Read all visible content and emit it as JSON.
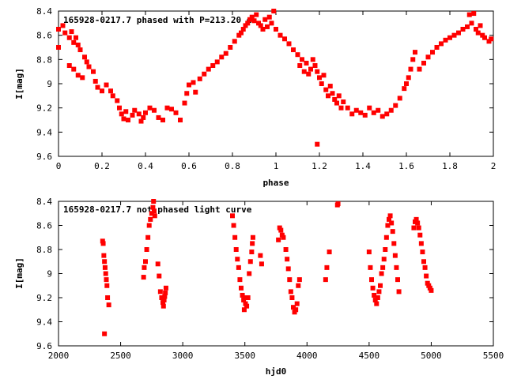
{
  "chart_data": [
    {
      "type": "scatter",
      "title": "165928-0217.7 phased with P=213.20 d",
      "xlabel": "phase",
      "ylabel": "I[mag]",
      "xlim": [
        0,
        2
      ],
      "ylim": [
        9.6,
        8.4
      ],
      "y_inverted": true,
      "grid": false,
      "marker_color": "#ff0000",
      "xticks": [
        "0",
        "0.2",
        "0.4",
        "0.6",
        "0.8",
        "1",
        "1.2",
        "1.4",
        "1.6",
        "1.8",
        "2"
      ],
      "yticks": [
        "8.4",
        "8.6",
        "8.8",
        "9",
        "9.2",
        "9.4",
        "9.6"
      ],
      "points": [
        [
          0.0,
          8.7
        ],
        [
          0.0,
          8.55
        ],
        [
          0.02,
          8.52
        ],
        [
          0.03,
          8.58
        ],
        [
          0.05,
          8.62
        ],
        [
          0.06,
          8.57
        ],
        [
          0.07,
          8.66
        ],
        [
          0.08,
          8.62
        ],
        [
          0.09,
          8.68
        ],
        [
          0.1,
          8.72
        ],
        [
          0.05,
          8.85
        ],
        [
          0.07,
          8.88
        ],
        [
          0.09,
          8.93
        ],
        [
          0.11,
          8.95
        ],
        [
          0.12,
          8.78
        ],
        [
          0.13,
          8.82
        ],
        [
          0.14,
          8.86
        ],
        [
          0.16,
          8.9
        ],
        [
          0.17,
          8.98
        ],
        [
          0.18,
          9.03
        ],
        [
          0.2,
          9.06
        ],
        [
          0.22,
          9.01
        ],
        [
          0.24,
          9.06
        ],
        [
          0.25,
          9.1
        ],
        [
          0.27,
          9.14
        ],
        [
          0.28,
          9.2
        ],
        [
          0.29,
          9.25
        ],
        [
          0.3,
          9.29
        ],
        [
          0.31,
          9.23
        ],
        [
          0.32,
          9.3
        ],
        [
          0.34,
          9.26
        ],
        [
          0.35,
          9.22
        ],
        [
          0.37,
          9.25
        ],
        [
          0.38,
          9.31
        ],
        [
          0.39,
          9.28
        ],
        [
          0.4,
          9.24
        ],
        [
          0.42,
          9.2
        ],
        [
          0.44,
          9.22
        ],
        [
          0.46,
          9.28
        ],
        [
          0.48,
          9.3
        ],
        [
          0.5,
          9.2
        ],
        [
          0.52,
          9.21
        ],
        [
          0.54,
          9.24
        ],
        [
          0.56,
          9.3
        ],
        [
          0.58,
          9.16
        ],
        [
          0.59,
          9.08
        ],
        [
          0.6,
          9.01
        ],
        [
          0.62,
          8.99
        ],
        [
          0.63,
          9.07
        ],
        [
          0.65,
          8.96
        ],
        [
          0.67,
          8.92
        ],
        [
          0.69,
          8.88
        ],
        [
          0.71,
          8.85
        ],
        [
          0.73,
          8.82
        ],
        [
          0.75,
          8.78
        ],
        [
          0.77,
          8.75
        ],
        [
          0.79,
          8.7
        ],
        [
          0.81,
          8.65
        ],
        [
          0.83,
          8.6
        ],
        [
          0.84,
          8.58
        ],
        [
          0.85,
          8.55
        ],
        [
          0.86,
          8.52
        ],
        [
          0.87,
          8.5
        ],
        [
          0.88,
          8.47
        ],
        [
          0.89,
          8.45
        ],
        [
          0.9,
          8.48
        ],
        [
          0.91,
          8.43
        ],
        [
          0.92,
          8.5
        ],
        [
          0.93,
          8.52
        ],
        [
          0.94,
          8.55
        ],
        [
          0.95,
          8.47
        ],
        [
          0.96,
          8.53
        ],
        [
          0.97,
          8.45
        ],
        [
          0.98,
          8.5
        ],
        [
          0.99,
          8.4
        ],
        [
          1.0,
          8.55
        ],
        [
          1.02,
          8.6
        ],
        [
          1.04,
          8.63
        ],
        [
          1.06,
          8.67
        ],
        [
          1.08,
          8.72
        ],
        [
          1.1,
          8.76
        ],
        [
          1.11,
          8.85
        ],
        [
          1.12,
          8.8
        ],
        [
          1.13,
          8.9
        ],
        [
          1.14,
          8.83
        ],
        [
          1.15,
          8.92
        ],
        [
          1.16,
          8.88
        ],
        [
          1.17,
          8.8
        ],
        [
          1.18,
          8.85
        ],
        [
          1.19,
          8.9
        ],
        [
          1.2,
          8.95
        ],
        [
          1.21,
          9.0
        ],
        [
          1.22,
          8.93
        ],
        [
          1.23,
          9.05
        ],
        [
          1.24,
          9.1
        ],
        [
          1.25,
          9.02
        ],
        [
          1.26,
          9.08
        ],
        [
          1.27,
          9.13
        ],
        [
          1.28,
          9.16
        ],
        [
          1.29,
          9.1
        ],
        [
          1.3,
          9.2
        ],
        [
          1.31,
          9.15
        ],
        [
          1.33,
          9.2
        ],
        [
          1.35,
          9.25
        ],
        [
          1.37,
          9.22
        ],
        [
          1.39,
          9.24
        ],
        [
          1.41,
          9.26
        ],
        [
          1.43,
          9.2
        ],
        [
          1.45,
          9.24
        ],
        [
          1.47,
          9.22
        ],
        [
          1.49,
          9.27
        ],
        [
          1.51,
          9.25
        ],
        [
          1.53,
          9.22
        ],
        [
          1.55,
          9.18
        ],
        [
          1.57,
          9.12
        ],
        [
          1.59,
          9.04
        ],
        [
          1.6,
          9.0
        ],
        [
          1.61,
          8.95
        ],
        [
          1.62,
          8.88
        ],
        [
          1.63,
          8.8
        ],
        [
          1.64,
          8.74
        ],
        [
          1.66,
          8.88
        ],
        [
          1.68,
          8.83
        ],
        [
          1.7,
          8.78
        ],
        [
          1.72,
          8.74
        ],
        [
          1.74,
          8.7
        ],
        [
          1.76,
          8.67
        ],
        [
          1.78,
          8.64
        ],
        [
          1.8,
          8.62
        ],
        [
          1.82,
          8.6
        ],
        [
          1.84,
          8.58
        ],
        [
          1.86,
          8.55
        ],
        [
          1.88,
          8.53
        ],
        [
          1.89,
          8.43
        ],
        [
          1.9,
          8.5
        ],
        [
          1.91,
          8.42
        ],
        [
          1.92,
          8.55
        ],
        [
          1.93,
          8.58
        ],
        [
          1.94,
          8.52
        ],
        [
          1.95,
          8.6
        ],
        [
          1.96,
          8.62
        ],
        [
          1.98,
          8.65
        ],
        [
          1.99,
          8.63
        ],
        [
          1.19,
          9.5
        ]
      ]
    },
    {
      "type": "scatter",
      "title": "165928-0217.7 not phased light curve",
      "xlabel": "hjd0",
      "ylabel": "I[mag]",
      "xlim": [
        2000,
        5500
      ],
      "ylim": [
        9.6,
        8.4
      ],
      "y_inverted": true,
      "grid": false,
      "marker_color": "#ff0000",
      "xticks": [
        "2000",
        "2500",
        "3000",
        "3500",
        "4000",
        "4500",
        "5000",
        "5500"
      ],
      "yticks": [
        "8.4",
        "8.6",
        "8.8",
        "9",
        "9.2",
        "9.4",
        "9.6"
      ],
      "points": [
        [
          2355,
          8.73
        ],
        [
          2360,
          8.75
        ],
        [
          2365,
          8.85
        ],
        [
          2370,
          8.9
        ],
        [
          2375,
          8.95
        ],
        [
          2380,
          9.0
        ],
        [
          2385,
          9.05
        ],
        [
          2390,
          9.1
        ],
        [
          2395,
          9.2
        ],
        [
          2405,
          9.26
        ],
        [
          2370,
          9.5
        ],
        [
          2685,
          9.03
        ],
        [
          2690,
          8.95
        ],
        [
          2700,
          8.9
        ],
        [
          2710,
          8.8
        ],
        [
          2720,
          8.7
        ],
        [
          2730,
          8.6
        ],
        [
          2740,
          8.55
        ],
        [
          2750,
          8.5
        ],
        [
          2760,
          8.45
        ],
        [
          2765,
          8.4
        ],
        [
          2770,
          8.48
        ],
        [
          2775,
          8.52
        ],
        [
          2800,
          8.92
        ],
        [
          2810,
          9.02
        ],
        [
          2820,
          9.15
        ],
        [
          2830,
          9.2
        ],
        [
          2840,
          9.24
        ],
        [
          2845,
          9.27
        ],
        [
          2850,
          9.22
        ],
        [
          2855,
          9.19
        ],
        [
          2860,
          9.16
        ],
        [
          2865,
          9.12
        ],
        [
          3400,
          8.52
        ],
        [
          3410,
          8.6
        ],
        [
          3420,
          8.7
        ],
        [
          3430,
          8.8
        ],
        [
          3440,
          8.88
        ],
        [
          3450,
          8.95
        ],
        [
          3460,
          9.05
        ],
        [
          3470,
          9.12
        ],
        [
          3480,
          9.18
        ],
        [
          3490,
          9.22
        ],
        [
          3495,
          9.3
        ],
        [
          3500,
          9.2
        ],
        [
          3505,
          9.25
        ],
        [
          3515,
          9.27
        ],
        [
          3525,
          9.2
        ],
        [
          3535,
          9.0
        ],
        [
          3545,
          8.9
        ],
        [
          3555,
          8.82
        ],
        [
          3560,
          8.75
        ],
        [
          3565,
          8.7
        ],
        [
          3625,
          8.85
        ],
        [
          3635,
          8.92
        ],
        [
          3770,
          8.72
        ],
        [
          3780,
          8.62
        ],
        [
          3790,
          8.64
        ],
        [
          3800,
          8.68
        ],
        [
          3810,
          8.7
        ],
        [
          3830,
          8.8
        ],
        [
          3840,
          8.88
        ],
        [
          3850,
          8.96
        ],
        [
          3860,
          9.05
        ],
        [
          3870,
          9.15
        ],
        [
          3880,
          9.2
        ],
        [
          3890,
          9.28
        ],
        [
          3900,
          9.32
        ],
        [
          3910,
          9.3
        ],
        [
          3920,
          9.25
        ],
        [
          3930,
          9.1
        ],
        [
          3940,
          9.05
        ],
        [
          4150,
          9.05
        ],
        [
          4160,
          8.95
        ],
        [
          4180,
          8.82
        ],
        [
          4245,
          8.43
        ],
        [
          4250,
          8.42
        ],
        [
          4500,
          8.82
        ],
        [
          4510,
          8.95
        ],
        [
          4520,
          9.05
        ],
        [
          4530,
          9.12
        ],
        [
          4540,
          9.18
        ],
        [
          4550,
          9.22
        ],
        [
          4560,
          9.25
        ],
        [
          4570,
          9.2
        ],
        [
          4580,
          9.15
        ],
        [
          4590,
          9.1
        ],
        [
          4600,
          9.0
        ],
        [
          4610,
          8.95
        ],
        [
          4620,
          8.88
        ],
        [
          4630,
          8.8
        ],
        [
          4640,
          8.7
        ],
        [
          4650,
          8.6
        ],
        [
          4660,
          8.55
        ],
        [
          4670,
          8.52
        ],
        [
          4680,
          8.58
        ],
        [
          4690,
          8.65
        ],
        [
          4700,
          8.75
        ],
        [
          4710,
          8.85
        ],
        [
          4720,
          8.95
        ],
        [
          4730,
          9.05
        ],
        [
          4740,
          9.15
        ],
        [
          4860,
          8.62
        ],
        [
          4870,
          8.57
        ],
        [
          4880,
          8.55
        ],
        [
          4890,
          8.58
        ],
        [
          4900,
          8.62
        ],
        [
          4910,
          8.68
        ],
        [
          4920,
          8.75
        ],
        [
          4930,
          8.82
        ],
        [
          4940,
          8.9
        ],
        [
          4950,
          8.95
        ],
        [
          4960,
          9.02
        ],
        [
          4970,
          9.08
        ],
        [
          4980,
          9.1
        ],
        [
          4990,
          9.12
        ],
        [
          5000,
          9.14
        ]
      ]
    }
  ]
}
